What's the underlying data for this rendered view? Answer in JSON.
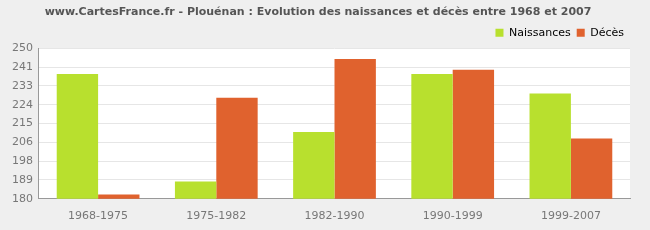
{
  "chart_data": {
    "type": "bar",
    "title": "www.CartesFrance.fr - Plouénan : Evolution des naissances et décès entre 1968 et 2007",
    "categories": [
      "1968-1975",
      "1975-1982",
      "1982-1990",
      "1990-1999",
      "1999-2007"
    ],
    "series": [
      {
        "name": "Naissances",
        "color": "#b8e02e",
        "values": [
          238,
          188,
          211,
          238,
          229
        ]
      },
      {
        "name": "Décès",
        "color": "#e0622e",
        "values": [
          182,
          227,
          245,
          240,
          208
        ]
      }
    ],
    "ylim": [
      180,
      250
    ],
    "yticks": [
      180,
      {
        "value": 188.75,
        "label": "189"
      },
      {
        "value": 197.5,
        "label": "198"
      },
      {
        "value": 206.25,
        "label": "206"
      },
      215,
      {
        "value": 223.75,
        "label": "224"
      },
      {
        "value": 232.5,
        "label": "233"
      },
      {
        "value": 241.25,
        "label": "241"
      },
      250
    ],
    "grid": true,
    "legend": "top-right"
  }
}
